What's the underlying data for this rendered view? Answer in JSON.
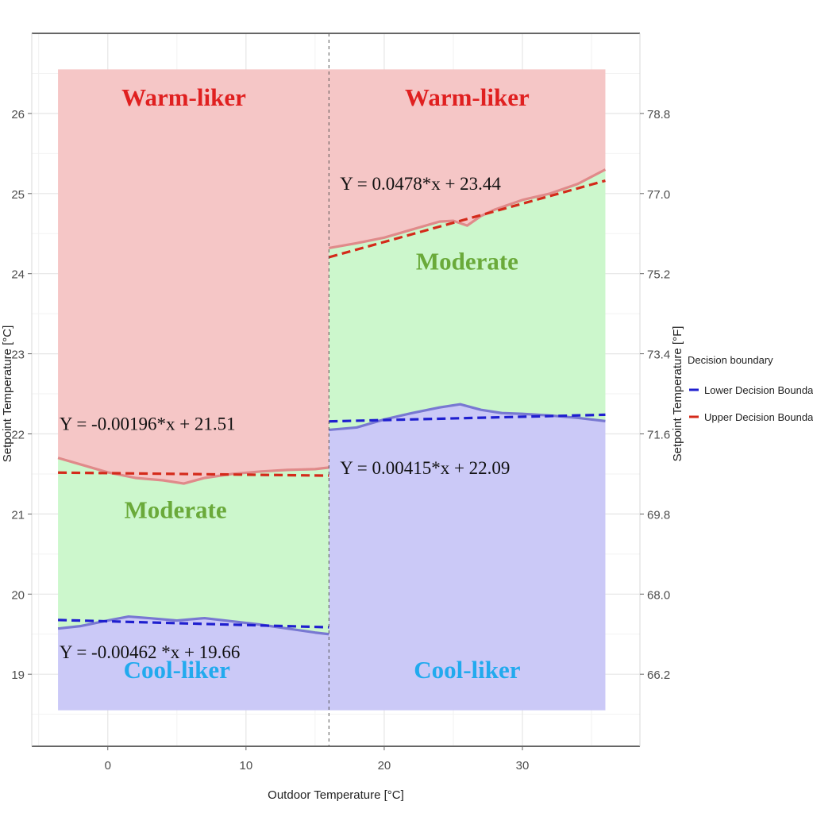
{
  "chart_data": {
    "type": "area",
    "xlabel": "Outdoor Temperature [°C]",
    "ylabel_left": "Setpoint Temperature [°C]",
    "ylabel_right": "Setpoint Temperature [°F]",
    "xlim": [
      -5.5,
      38.5
    ],
    "ylim": [
      18.1,
      27.0
    ],
    "x_ticks": [
      0,
      10,
      20,
      30
    ],
    "y_ticks_left": [
      19,
      20,
      21,
      22,
      23,
      24,
      25,
      26
    ],
    "y_ticks_right": [
      "66.2",
      "68.0",
      "69.8",
      "71.6",
      "73.4",
      "75.2",
      "77.0",
      "78.8"
    ],
    "y_ticks_right_values_c": [
      19,
      20,
      21,
      22,
      23,
      24,
      25,
      26
    ],
    "grid": true,
    "split_x": 16,
    "band_x_range": [
      -3.6,
      36
    ],
    "band_y_range": [
      18.55,
      26.55
    ],
    "colors": {
      "warm_fill": "#f5c6c6",
      "moderate_fill": "#ccf7cc",
      "cool_fill": "#cbc9f7",
      "lower_line": "#7878d2",
      "upper_line": "#e08a8a",
      "lower_fit": "#1f1fcf",
      "upper_fit": "#d42a1a",
      "warm_text": "#e02020",
      "moderate_text": "#6aaa3a",
      "cool_text": "#22aaee"
    },
    "series": [
      {
        "name": "Lower Decision Boundary",
        "segments": [
          {
            "x": [
              -3.6,
              -2,
              0,
              1.5,
              3,
              5,
              7,
              9,
              11,
              13,
              15,
              16
            ],
            "y": [
              19.57,
              19.6,
              19.67,
              19.72,
              19.7,
              19.67,
              19.7,
              19.66,
              19.62,
              19.57,
              19.52,
              19.5
            ]
          },
          {
            "x": [
              16,
              18,
              20,
              22,
              24,
              25.5,
              27,
              28.5,
              30,
              32,
              34,
              36
            ],
            "y": [
              22.05,
              22.08,
              22.18,
              22.26,
              22.33,
              22.37,
              22.3,
              22.26,
              22.25,
              22.23,
              22.2,
              22.16
            ]
          }
        ]
      },
      {
        "name": "Upper Decision Boundary",
        "segments": [
          {
            "x": [
              -3.6,
              -2,
              0,
              2,
              4,
              5.5,
              7,
              9,
              11,
              13,
              15,
              16
            ],
            "y": [
              21.7,
              21.62,
              21.52,
              21.45,
              21.42,
              21.38,
              21.45,
              21.5,
              21.53,
              21.55,
              21.56,
              21.58
            ]
          },
          {
            "x": [
              16,
              18,
              20,
              22,
              24,
              25,
              26,
              27,
              28,
              30,
              32,
              34,
              36
            ],
            "y": [
              24.32,
              24.38,
              24.45,
              24.55,
              24.65,
              24.66,
              24.6,
              24.72,
              24.8,
              24.92,
              25.0,
              25.12,
              25.3
            ]
          }
        ]
      }
    ],
    "fits": [
      {
        "series": "Lower Decision Boundary",
        "x": [
          -3.6,
          16
        ],
        "y": [
          19.677,
          19.586
        ]
      },
      {
        "series": "Upper Decision Boundary",
        "x": [
          -3.6,
          16
        ],
        "y": [
          21.517,
          21.479
        ]
      },
      {
        "series": "Lower Decision Boundary",
        "x": [
          16,
          36
        ],
        "y": [
          22.156,
          22.239
        ]
      },
      {
        "series": "Upper Decision Boundary",
        "x": [
          16,
          36
        ],
        "y": [
          24.205,
          25.161
        ]
      }
    ],
    "equations": [
      {
        "text": "Y = -0.00196*x + 21.51",
        "x": -3.5,
        "y": 22.05
      },
      {
        "text": "Y = -0.00462 *x + 19.66",
        "x": -3.5,
        "y": 19.2
      },
      {
        "text": "Y = 0.0478*x + 23.44",
        "x": 16.8,
        "y": 25.05
      },
      {
        "text": "Y = 0.00415*x + 22.09",
        "x": 16.8,
        "y": 21.5
      }
    ],
    "region_labels": [
      {
        "text": "Warm-liker",
        "x": 5.5,
        "y": 26.1,
        "kind": "warm"
      },
      {
        "text": "Moderate",
        "x": 4.9,
        "y": 20.95,
        "kind": "moderate"
      },
      {
        "text": "Cool-liker",
        "x": 5.0,
        "y": 18.95,
        "kind": "cool"
      },
      {
        "text": "Warm-liker",
        "x": 26,
        "y": 26.1,
        "kind": "warm"
      },
      {
        "text": "Moderate",
        "x": 26,
        "y": 24.05,
        "kind": "moderate"
      },
      {
        "text": "Cool-liker",
        "x": 26,
        "y": 18.95,
        "kind": "cool"
      }
    ],
    "legend": {
      "title": "Decision boundary",
      "position": "right",
      "entries": [
        {
          "label": "Lower Decision Boundary",
          "color": "#1f1fcf"
        },
        {
          "label": "Upper Decision Boundary",
          "color": "#d42a1a"
        }
      ]
    }
  }
}
